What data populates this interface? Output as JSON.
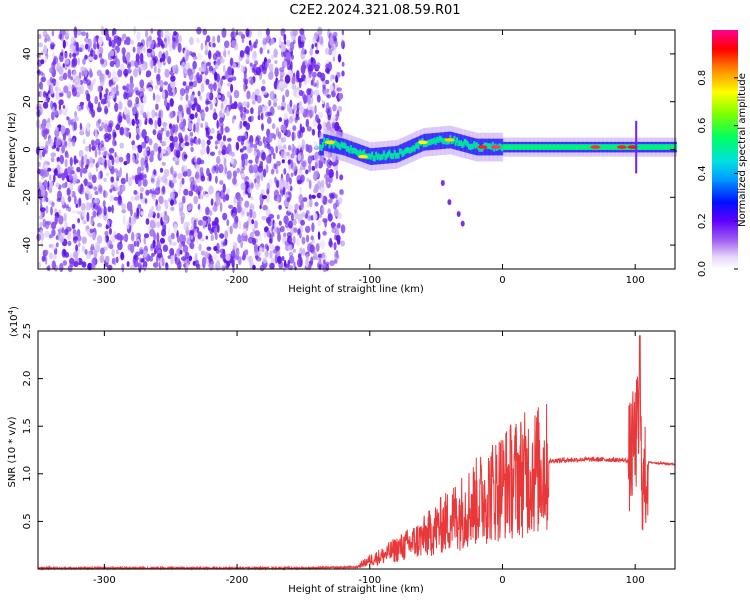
{
  "title": "C2E2.2024.321.08.59.R01",
  "chart_data": [
    {
      "type": "heatmap",
      "panel": "spectrogram",
      "xlabel": "Height of straight line (km)",
      "ylabel": "Frequency (Hz)",
      "xlim": [
        -350,
        130
      ],
      "ylim": [
        -50,
        50
      ],
      "xticks": [
        -300,
        -200,
        -100,
        0,
        100
      ],
      "yticks": [
        -40,
        -20,
        0,
        20,
        40
      ],
      "colorbar": {
        "label": "Normalized spectral amplitude",
        "ticks": [
          0.0,
          0.2,
          0.4,
          0.6,
          0.8
        ],
        "range": [
          0,
          1
        ],
        "colormap": "rainbow (white-violet-blue-cyan-green-yellow-red-magenta)"
      },
      "description_points": {
        "noise_region_x": [
          -350,
          -120
        ],
        "signal_start_x": -138,
        "signal_center_track": [
          {
            "x": -135,
            "y": 3
          },
          {
            "x": -120,
            "y": 1
          },
          {
            "x": -100,
            "y": -3
          },
          {
            "x": -80,
            "y": -2
          },
          {
            "x": -60,
            "y": 3
          },
          {
            "x": -40,
            "y": 4
          },
          {
            "x": -20,
            "y": 1
          },
          {
            "x": 0,
            "y": 1
          },
          {
            "x": 50,
            "y": 1
          },
          {
            "x": 100,
            "y": 1
          },
          {
            "x": 130,
            "y": 1
          }
        ],
        "secondary_branch": [
          {
            "x": -45,
            "y": -14
          },
          {
            "x": -40,
            "y": -22
          },
          {
            "x": -33,
            "y": -27
          },
          {
            "x": -30,
            "y": -31
          }
        ]
      }
    },
    {
      "type": "line",
      "panel": "snr",
      "xlabel": "Height of straight line (km)",
      "ylabel": "SNR (10 * v/v)",
      "multiplier_label": "(x10",
      "multiplier_exp": "4",
      "multiplier_close": ")",
      "xlim": [
        -350,
        130
      ],
      "ylim": [
        0,
        2.5
      ],
      "xticks": [
        -300,
        -200,
        -100,
        0,
        100
      ],
      "yticks": [
        0.5,
        1.0,
        1.5,
        2.0,
        2.5
      ],
      "color": "#e8383a",
      "series": [
        {
          "x": [
            -350,
            -300,
            -250,
            -200,
            -150,
            -110,
            -100,
            -90,
            -80,
            -70,
            -60,
            -50,
            -40,
            -30,
            -20,
            -10,
            0,
            10,
            20,
            30,
            40,
            60,
            80,
            95,
            100,
            103,
            106,
            110,
            120,
            130
          ],
          "values": [
            0.01,
            0.01,
            0.01,
            0.01,
            0.01,
            0.02,
            0.1,
            0.15,
            0.22,
            0.28,
            0.35,
            0.45,
            0.55,
            0.65,
            0.75,
            0.85,
            0.95,
            1.02,
            1.08,
            1.12,
            1.14,
            1.15,
            1.15,
            1.14,
            1.35,
            1.55,
            0.8,
            1.12,
            1.11,
            1.1
          ]
        }
      ]
    }
  ]
}
